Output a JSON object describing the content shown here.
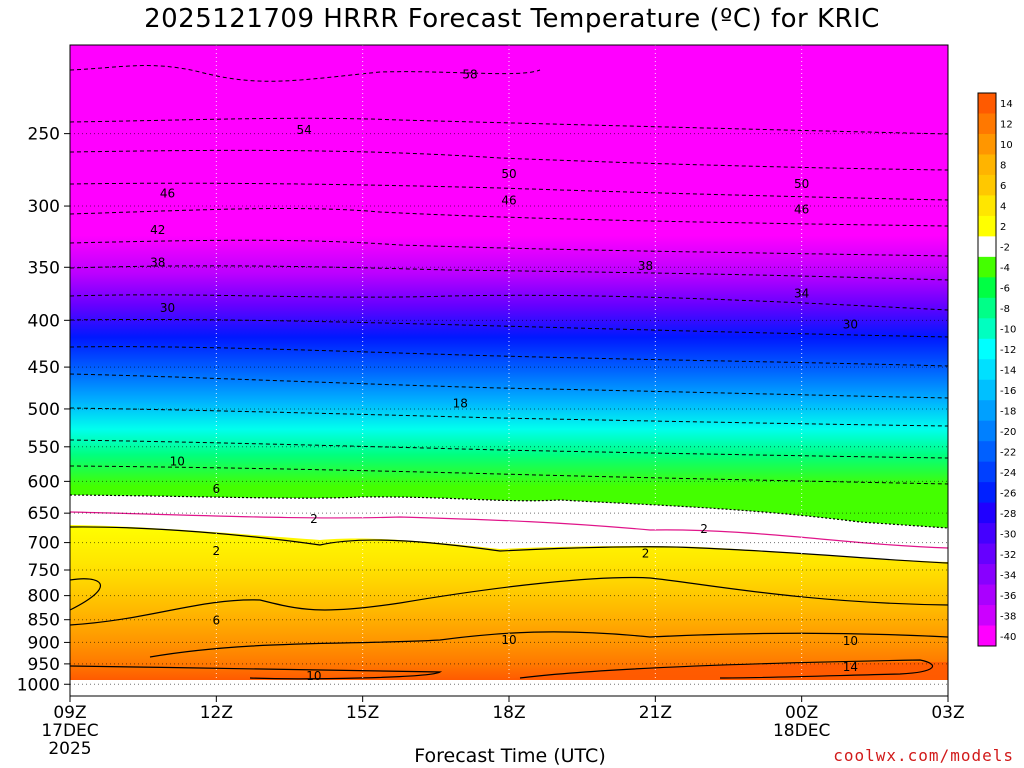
{
  "chart_data": {
    "type": "contour",
    "title": "2025121709 HRRR Forecast Temperature (ºC) for KRIC",
    "xlabel": "Forecast Time (UTC)",
    "ylabel": "",
    "credit": "coolwx.com/models",
    "x_ticks": [
      {
        "label": "09Z",
        "sub1": "17DEC",
        "sub2": "2025",
        "hour": 9
      },
      {
        "label": "12Z",
        "sub1": "",
        "sub2": "",
        "hour": 12
      },
      {
        "label": "15Z",
        "sub1": "",
        "sub2": "",
        "hour": 15
      },
      {
        "label": "18Z",
        "sub1": "",
        "sub2": "",
        "hour": 18
      },
      {
        "label": "21Z",
        "sub1": "",
        "sub2": "",
        "hour": 21
      },
      {
        "label": "00Z",
        "sub1": "18DEC",
        "sub2": "",
        "hour": 24
      },
      {
        "label": "03Z",
        "sub1": "",
        "sub2": "",
        "hour": 27
      }
    ],
    "xlim": [
      9,
      27
    ],
    "y_ticks": [
      250,
      300,
      350,
      400,
      450,
      500,
      550,
      600,
      650,
      700,
      750,
      800,
      850,
      900,
      950,
      1000
    ],
    "ylim": [
      200,
      1030
    ],
    "y_scale": "log-pressure (hPa)",
    "colorbar": {
      "labels": [
        "14",
        "12",
        "10",
        "8",
        "6",
        "4",
        "2",
        "-2",
        "-4",
        "-6",
        "-8",
        "-10",
        "-12",
        "-14",
        "-16",
        "-18",
        "-20",
        "-22",
        "-24",
        "-26",
        "-28",
        "-30",
        "-32",
        "-34",
        "-36",
        "-38",
        "-40"
      ],
      "colors": [
        "#ff5a00",
        "#ff7800",
        "#ff9600",
        "#ffb400",
        "#ffc800",
        "#ffe600",
        "#ffff00",
        "#ffffff",
        "#44ff00",
        "#00ff44",
        "#00ff88",
        "#00ffc0",
        "#00ffff",
        "#00e0ff",
        "#00c0ff",
        "#00a0ff",
        "#0080ff",
        "#0060ff",
        "#0040ff",
        "#0020ff",
        "#2000ff",
        "#4400ff",
        "#6600ff",
        "#8800ff",
        "#aa00ff",
        "#cc00ff",
        "#ff00ff"
      ]
    },
    "contour_labels": [
      {
        "text": "58",
        "hour": 17.2,
        "p": 215
      },
      {
        "text": "54",
        "hour": 13.8,
        "p": 247
      },
      {
        "text": "50",
        "hour": 18.0,
        "p": 276
      },
      {
        "text": "50",
        "hour": 24.0,
        "p": 283
      },
      {
        "text": "46",
        "hour": 11.0,
        "p": 290
      },
      {
        "text": "46",
        "hour": 18.0,
        "p": 295
      },
      {
        "text": "46",
        "hour": 24.0,
        "p": 302
      },
      {
        "text": "42",
        "hour": 10.8,
        "p": 318
      },
      {
        "text": "38",
        "hour": 10.8,
        "p": 345
      },
      {
        "text": "38",
        "hour": 20.8,
        "p": 348
      },
      {
        "text": "34",
        "hour": 24.0,
        "p": 373
      },
      {
        "text": "30",
        "hour": 11.0,
        "p": 387
      },
      {
        "text": "30",
        "hour": 25.0,
        "p": 403
      },
      {
        "text": "18",
        "hour": 17.0,
        "p": 492
      },
      {
        "text": "10",
        "hour": 11.2,
        "p": 569
      },
      {
        "text": "6",
        "hour": 12.0,
        "p": 610
      },
      {
        "text": "2",
        "hour": 14.0,
        "p": 658
      },
      {
        "text": "2",
        "hour": 22.0,
        "p": 675
      },
      {
        "text": "2",
        "hour": 12.0,
        "p": 713
      },
      {
        "text": "2",
        "hour": 20.8,
        "p": 718
      },
      {
        "text": "6",
        "hour": 12.0,
        "p": 850
      },
      {
        "text": "10",
        "hour": 18.0,
        "p": 892
      },
      {
        "text": "10",
        "hour": 25.0,
        "p": 895
      },
      {
        "text": "10",
        "hour": 14.0,
        "p": 977
      },
      {
        "text": "14",
        "hour": 25.0,
        "p": 955
      }
    ]
  }
}
